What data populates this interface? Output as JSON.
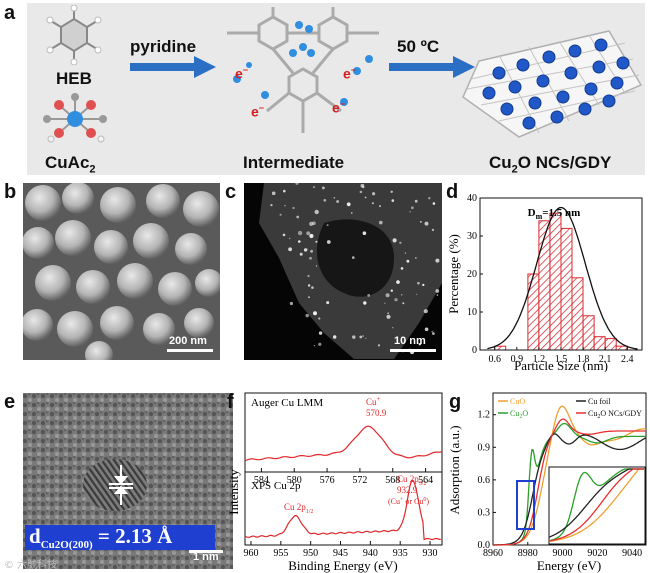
{
  "panel_labels": {
    "a": "a",
    "b": "b",
    "c": "c",
    "d": "d",
    "e": "e",
    "f": "f",
    "g": "g"
  },
  "scheme": {
    "heb": "HEB",
    "cuac2": "CuAc",
    "cuac2_sub": "2",
    "reagent": "pyridine",
    "intermediate": "Intermediate",
    "temperature": "50 ºC",
    "product_a": "Cu",
    "product_sub": "2",
    "product_b": "O NCs/GDY",
    "electron": "e",
    "electron_sup": "−"
  },
  "sem": {
    "scale_bar": "200 nm"
  },
  "haadf": {
    "scale_bar": "10 nm"
  },
  "hrtem": {
    "d_main": "d",
    "d_sub": "Cu2O(200)",
    "d_value": " = 2.13 Å",
    "scale_bar": "1 nm",
    "watermark": "© 六號科技"
  },
  "colors": {
    "blue_arrow": "#2a6fc4",
    "hist_red": "#d9282f",
    "xps_red": "#e0282a",
    "cuo_orange": "#f0a030",
    "cu2o_green": "#2aa02a",
    "cufoil_black": "#222222",
    "gdy_red": "#e83030",
    "label_box_blue": "#1f3fd0"
  },
  "chart_data": [
    {
      "type": "bar",
      "panel": "d",
      "title": "D",
      "title_sub": "m",
      "title_value": "=1.5 nm",
      "xlabel": "Particle Size (nm)",
      "ylabel": "Percentage (%)",
      "xlim": [
        0.4,
        2.6
      ],
      "ylim": [
        0,
        40
      ],
      "xticks": [
        "0.6",
        "0.9",
        "1.2",
        "1.5",
        "1.8",
        "2.1",
        "2.4"
      ],
      "yticks": [
        "0",
        "10",
        "20",
        "30",
        "40"
      ],
      "bin_width": 0.15,
      "bins": [
        0.675,
        0.975,
        1.125,
        1.275,
        1.425,
        1.575,
        1.725,
        1.875,
        2.025,
        2.175,
        2.325
      ],
      "values": [
        1,
        0,
        20,
        34,
        36,
        32,
        19,
        9,
        3.5,
        3,
        1
      ],
      "fit_center": 1.5,
      "fit_sigma": 0.33,
      "fit_peak": 37.5
    },
    {
      "type": "line",
      "panel": "f",
      "xlabel": "Binding Energy (eV)",
      "ylabel": "Intensity",
      "top_title": "Auger Cu LMM",
      "top_xticks": [
        "584",
        "580",
        "576",
        "572",
        "568",
        "564"
      ],
      "top_xlim": [
        586,
        562
      ],
      "top_peak_label": "Cu",
      "top_peak_sup": "+",
      "top_peak_value": "570.9",
      "bottom_title": "XPS Cu 2p",
      "bottom_xticks": [
        "960",
        "955",
        "950",
        "945",
        "940",
        "935",
        "930"
      ],
      "bottom_xlim": [
        961,
        928
      ],
      "peak_cu2p12": "Cu 2p",
      "peak_cu2p12_sub": "1/2",
      "peak_cu2p32": "Cu 2p",
      "peak_cu2p32_sub": "3/2",
      "peak_cu2p32_value": "932.9",
      "peak_cu2p32_note": "(Cu",
      "peak_cu2p32_note_sup1": "+",
      "peak_cu2p32_note_or": " or Cu",
      "peak_cu2p32_note_sup2": "0",
      "peak_cu2p32_note_end": ")"
    },
    {
      "type": "line",
      "panel": "g",
      "xlabel": "Energy (eV)",
      "ylabel": "Adsorption (a.u.)",
      "xlim": [
        8960,
        9048
      ],
      "ylim": [
        0,
        1.4
      ],
      "xticks": [
        "8960",
        "8980",
        "9000",
        "9020",
        "9040"
      ],
      "yticks": [
        "0.0",
        "0.3",
        "0.6",
        "0.9",
        "1.2"
      ],
      "series": [
        {
          "name": "CuO",
          "sub": "",
          "color": "#f0a030"
        },
        {
          "name": "Cu",
          "sub": "2",
          "suffix": "O",
          "color": "#2aa02a"
        },
        {
          "name": "Cu foil",
          "sub": "",
          "color": "#222222"
        },
        {
          "name": "Cu",
          "sub": "2",
          "suffix": "O NCs/GDY",
          "color": "#e83030"
        }
      ]
    }
  ]
}
